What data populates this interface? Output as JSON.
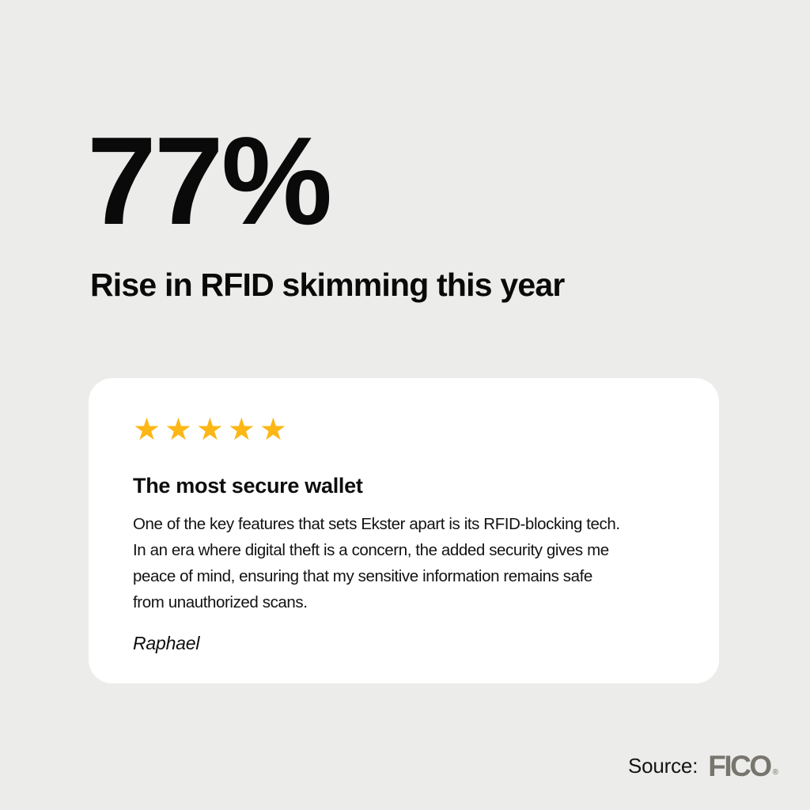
{
  "colors": {
    "background": "#ECECEA",
    "card_background": "#FFFFFF",
    "text": "#0A0A0A",
    "star_gold": "#FCB716",
    "fico_gray": "#77756E"
  },
  "hero": {
    "stat_value": "77%",
    "stat_label": "Rise in RFID skimming this year"
  },
  "review_card": {
    "rating_stars": "★★★★★",
    "title": "The most secure wallet",
    "body_lines": [
      "One of the key features that sets Ekster apart is its RFID-blocking tech.",
      "In an era where digital theft is a concern, the added security gives me",
      "peace of mind, ensuring that my sensitive information remains safe",
      "from unauthorized scans."
    ],
    "author": "Raphael"
  },
  "footer": {
    "source_label": "Source:",
    "source_name": "FICO",
    "registered_mark": "®"
  }
}
